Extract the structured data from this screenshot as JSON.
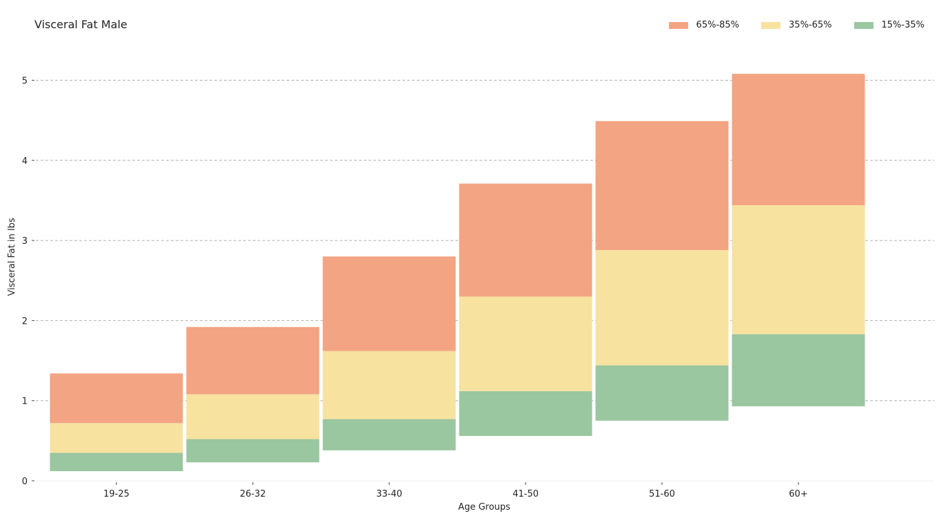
{
  "chart_data": {
    "type": "bar",
    "title": "Visceral Fat Male",
    "xlabel": "Age Groups",
    "ylabel": "Visceral Fat in lbs",
    "categories": [
      "19-25",
      "26-32",
      "33-40",
      "41-50",
      "51-60",
      "60+"
    ],
    "ylim": [
      0,
      5.2
    ],
    "yticks": [
      0,
      1,
      2,
      3,
      4,
      5
    ],
    "grid": "horizontal dashed",
    "legend_position": "top-right",
    "series": [
      {
        "name": "15%-35%",
        "color": "#9ac6a0",
        "lower": [
          0.12,
          0.23,
          0.38,
          0.56,
          0.75,
          0.93
        ],
        "upper": [
          0.35,
          0.52,
          0.77,
          1.12,
          1.44,
          1.83
        ]
      },
      {
        "name": "35%-65%",
        "color": "#f7e2a0",
        "lower": [
          0.35,
          0.52,
          0.77,
          1.12,
          1.44,
          1.83
        ],
        "upper": [
          0.72,
          1.08,
          1.62,
          2.3,
          2.88,
          3.44
        ]
      },
      {
        "name": "65%-85%",
        "color": "#f3a483",
        "lower": [
          0.72,
          1.08,
          1.62,
          2.3,
          2.88,
          3.44
        ],
        "upper": [
          1.34,
          1.92,
          2.8,
          3.71,
          4.49,
          5.08
        ]
      }
    ],
    "legend_order": [
      "65%-85%",
      "35%-65%",
      "15%-35%"
    ]
  }
}
